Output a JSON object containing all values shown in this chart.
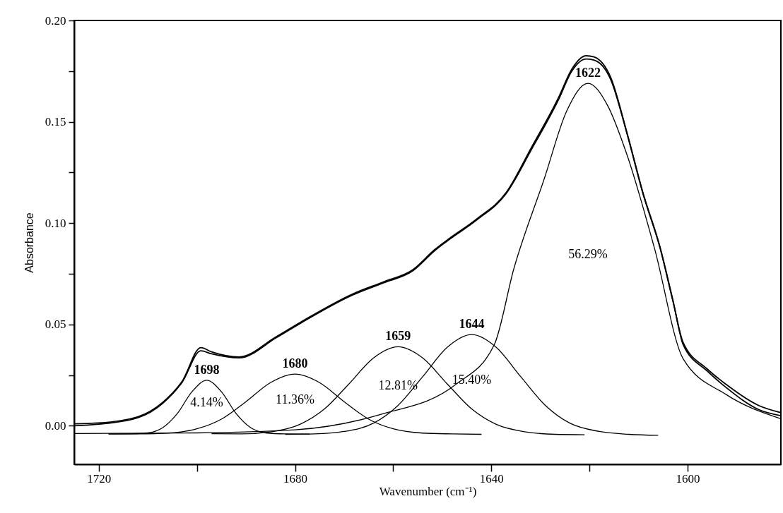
{
  "chart_data": {
    "type": "line",
    "xlabel": "Wavenumber (cm⁻¹)",
    "ylabel": "Absorbance",
    "xlim": [
      1725,
      1581
    ],
    "xticks": [
      1720,
      {
        "value": 1700,
        "label": null
      },
      1680,
      {
        "value": 1660,
        "label": null
      },
      1640,
      {
        "value": 1620,
        "label": null
      },
      1600
    ],
    "ylim": [
      -0.019,
      0.2
    ],
    "yticks": [
      {
        "value": 0,
        "label": "0.00"
      },
      {
        "value": 0.025,
        "label": null
      },
      0.05,
      {
        "value": 0.075,
        "label": null
      },
      {
        "value": 0.1,
        "label": "0.10"
      },
      {
        "value": 0.125,
        "label": null
      },
      0.15,
      {
        "value": 0.175,
        "label": null
      },
      {
        "value": 0.2,
        "label": "0.20"
      }
    ],
    "grid": false,
    "marker": "none",
    "line_style": "solid",
    "series": [
      {
        "color": "#000000",
        "x": [
          1725,
          1720,
          1712,
          1707,
          1703,
          1699.2,
          1697,
          1691.4,
          1683.8,
          1678.6,
          1668.3,
          1662,
          1656,
          1651.5,
          1648.8,
          1643,
          1637,
          1631.9,
          1626.3,
          1623.6,
          1620.7,
          1619.1,
          1615.7,
          1612.4,
          1609.1,
          1605.6,
          1603,
          1600.9,
          1596,
          1592.2,
          1585.5,
          1581
        ],
        "values": [
          0.001,
          0.0014,
          0.0045,
          0.0115,
          0.022,
          0.0386,
          0.0365,
          0.034,
          0.044,
          0.0515,
          0.065,
          0.071,
          0.077,
          0.087,
          0.092,
          0.102,
          0.115,
          0.137,
          0.162,
          0.176,
          0.1826,
          0.182,
          0.172,
          0.145,
          0.115,
          0.088,
          0.062,
          0.04,
          0.027,
          0.019,
          0.008,
          0.005
        ]
      },
      {
        "color": "#000000",
        "x": [
          1725,
          1720,
          1712,
          1707,
          1703,
          1699.2,
          1697,
          1691.4,
          1683.8,
          1678.6,
          1668.3,
          1662,
          1656,
          1651.5,
          1648.8,
          1643,
          1637,
          1631.9,
          1626.3,
          1623.6,
          1620.7,
          1619.1,
          1615.7,
          1612.4,
          1609.1,
          1605.6,
          1603,
          1600.9,
          1596,
          1592.2,
          1585.5,
          1581
        ],
        "values": [
          0.0,
          0.0008,
          0.004,
          0.011,
          0.0215,
          0.037,
          0.0355,
          0.0335,
          0.0435,
          0.051,
          0.0645,
          0.0705,
          0.0765,
          0.0865,
          0.0915,
          0.1015,
          0.1145,
          0.136,
          0.161,
          0.175,
          0.181,
          0.1805,
          0.171,
          0.1445,
          0.1145,
          0.0875,
          0.0615,
          0.041,
          0.028,
          0.0205,
          0.01,
          0.0065
        ]
      },
      {
        "color": "#000000",
        "x": [
          1718,
          1714,
          1710,
          1707,
          1704,
          1701,
          1698,
          1695,
          1692,
          1689,
          1686,
          1682,
          1677
        ],
        "values": [
          -0.004,
          -0.004,
          -0.0035,
          -0.001,
          0.006,
          0.0168,
          0.0225,
          0.0168,
          0.006,
          -0.001,
          -0.0035,
          -0.004,
          -0.0041
        ]
      },
      {
        "color": "#000000",
        "x": [
          1718,
          1712,
          1706,
          1700,
          1695,
          1690,
          1685,
          1680,
          1675,
          1670,
          1665,
          1660,
          1654,
          1648,
          1642
        ],
        "values": [
          -0.0041,
          -0.004,
          -0.0036,
          -0.0015,
          0.0033,
          0.0119,
          0.0213,
          0.0255,
          0.0213,
          0.0119,
          0.0033,
          -0.0015,
          -0.0036,
          -0.004,
          -0.0042
        ]
      },
      {
        "color": "#000000",
        "x": [
          1697,
          1691,
          1685,
          1679,
          1674,
          1669,
          1664,
          1659,
          1654,
          1649,
          1644,
          1639,
          1633,
          1627,
          1621
        ],
        "values": [
          -0.0039,
          -0.004,
          -0.003,
          0.0007,
          0.0083,
          0.0207,
          0.0335,
          0.039,
          0.0335,
          0.0207,
          0.0083,
          0.0007,
          -0.003,
          -0.0042,
          -0.0044
        ]
      },
      {
        "color": "#000000",
        "x": [
          1682,
          1676,
          1670,
          1664,
          1659,
          1654,
          1649,
          1644,
          1639,
          1634,
          1629,
          1624,
          1618,
          1612,
          1606
        ],
        "values": [
          -0.0042,
          -0.004,
          -0.0028,
          0.0013,
          0.0101,
          0.0242,
          0.0387,
          0.045,
          0.0387,
          0.0242,
          0.0101,
          0.0013,
          -0.0028,
          -0.0042,
          -0.0047
        ]
      },
      {
        "color": "#000000",
        "x": [
          1725,
          1700,
          1680,
          1662.6,
          1647.2,
          1639.4,
          1635.4,
          1629.2,
          1624.7,
          1620.3,
          1616.3,
          1612.4,
          1606.8,
          1600.9,
          1592.2,
          1581
        ],
        "values": [
          -0.0038,
          -0.0035,
          -0.002,
          0.0056,
          0.0205,
          0.04,
          0.0776,
          0.122,
          0.155,
          0.169,
          0.158,
          0.134,
          0.088,
          0.033,
          0.0155,
          0.0035
        ]
      }
    ],
    "annotations": [
      {
        "text": "1698",
        "x": 1698,
        "y": 0.0225
      },
      {
        "text": "1680",
        "x": 1680,
        "y": 0.0255
      },
      {
        "text": "1659",
        "x": 1659,
        "y": 0.039
      },
      {
        "text": "1644",
        "x": 1644,
        "y": 0.045
      },
      {
        "text": "1622",
        "x": 1620.3,
        "y": 0.169
      },
      "4.14%",
      "11.36%",
      "12.81%",
      "15.40%",
      "56.29%"
    ]
  }
}
